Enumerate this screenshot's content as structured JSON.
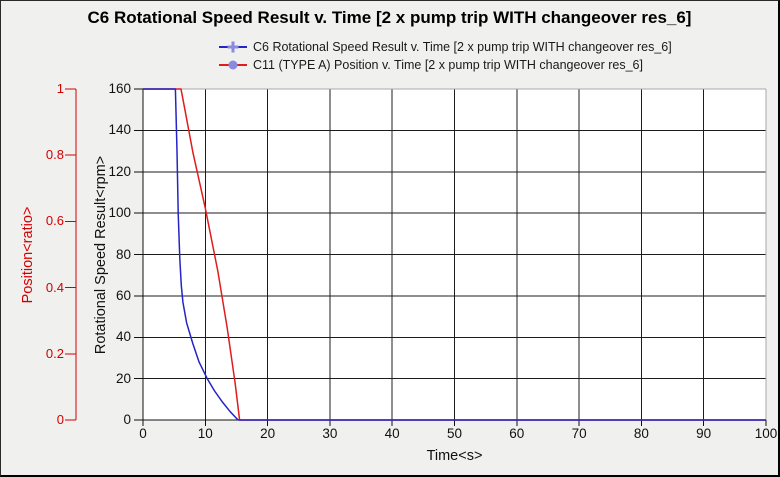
{
  "chart_data": {
    "type": "line",
    "title": "C6 Rotational Speed Result v. Time [2 x pump trip WITH changeover res_6]",
    "legend_position": "top",
    "grid": {
      "show": true,
      "color": "#1c1c1c"
    },
    "plot": {
      "background": "#ffffff",
      "top_right_border_color": "#a8a8a8",
      "bottom_left_border_color": "#111111"
    },
    "x_axis": {
      "label": "Time<s>",
      "min": 0,
      "max": 100,
      "ticks": [
        0,
        10,
        20,
        30,
        40,
        50,
        60,
        70,
        80,
        90,
        100
      ],
      "color": "#111111"
    },
    "y_axes": {
      "ratio": {
        "label": "Position<ratio>",
        "min": 0,
        "max": 1,
        "ticks": [
          0,
          0.2,
          0.4,
          0.6,
          0.8,
          1
        ],
        "color": "#d40000",
        "side": "outer-left"
      },
      "rpm": {
        "label": "Rotational Speed Result<rpm>",
        "min": 0,
        "max": 160,
        "ticks": [
          0,
          20,
          40,
          60,
          80,
          100,
          120,
          140,
          160
        ],
        "color": "#111111",
        "side": "inner-left"
      }
    },
    "series": [
      {
        "id": "c6-speed",
        "label": "C6 Rotational Speed Result v. Time [2 x pump trip WITH changeover res_6]",
        "axis": "rpm",
        "color": "#2424c8",
        "marker": "plus",
        "marker_color": "#8a8ae0",
        "points": [
          [
            0,
            160
          ],
          [
            5.2,
            160
          ],
          [
            5.45,
            130
          ],
          [
            5.65,
            100
          ],
          [
            5.9,
            78
          ],
          [
            6.15,
            65
          ],
          [
            6.4,
            57
          ],
          [
            7,
            47
          ],
          [
            8,
            37
          ],
          [
            9,
            28
          ],
          [
            10.3,
            20
          ],
          [
            11.5,
            14
          ],
          [
            12.8,
            8.5
          ],
          [
            14,
            4
          ],
          [
            15.1,
            0.5
          ],
          [
            15.3,
            0
          ],
          [
            100,
            0
          ]
        ]
      },
      {
        "id": "c11-position",
        "label": "C11 (TYPE A) Position v. Time [2 x pump trip WITH changeover res_6]",
        "axis": "ratio",
        "color": "#e01c1c",
        "marker": "circle",
        "marker_color": "#8a8ae0",
        "points": [
          [
            0,
            1
          ],
          [
            6.1,
            1
          ],
          [
            6.5,
            0.96
          ],
          [
            8,
            0.81
          ],
          [
            10,
            0.64
          ],
          [
            12,
            0.45
          ],
          [
            13.5,
            0.28
          ],
          [
            14.8,
            0.11
          ],
          [
            15.5,
            0
          ],
          [
            100,
            0
          ]
        ]
      }
    ]
  }
}
